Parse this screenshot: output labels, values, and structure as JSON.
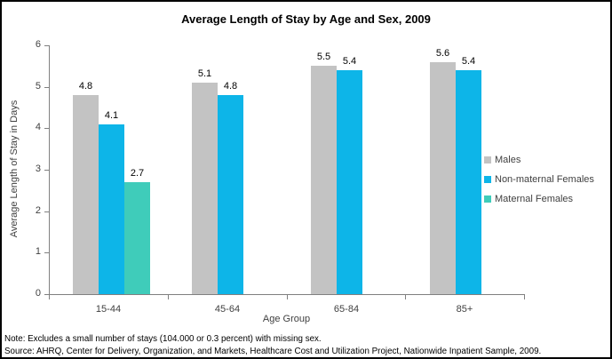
{
  "title": "Average Length of Stay by Age and Sex, 2009",
  "chart_data": {
    "type": "bar",
    "categories": [
      "15-44",
      "45-64",
      "65-84",
      "85+"
    ],
    "series": [
      {
        "name": "Males",
        "color": "#c3c3c3",
        "pattern": "dots",
        "values": [
          4.8,
          5.1,
          5.5,
          5.6
        ]
      },
      {
        "name": "Non-maternal Females",
        "color": "#0db5e8",
        "pattern": "solid",
        "values": [
          4.1,
          4.8,
          5.4,
          5.4
        ]
      },
      {
        "name": "Maternal Females",
        "color": "#3fccba",
        "pattern": "solid",
        "values": [
          2.7,
          null,
          null,
          null
        ]
      }
    ],
    "title": "Average Length of Stay by Age and Sex, 2009",
    "xlabel": "Age Group",
    "ylabel": "Average Length of Stay in Days",
    "ylim": [
      0,
      6
    ],
    "yticks": [
      0,
      1,
      2,
      3,
      4,
      5,
      6
    ],
    "grid": false,
    "legend_position": "right",
    "axis_color": "#808080"
  },
  "notes": {
    "note": "Note: Excludes a small number of stays (104.000 or 0.3 percent) with missing sex.",
    "source": "Source: AHRQ, Center for Delivery, Organization, and Markets, Healthcare Cost and Utilization Project, Nationwide Inpatient Sample, 2009."
  }
}
